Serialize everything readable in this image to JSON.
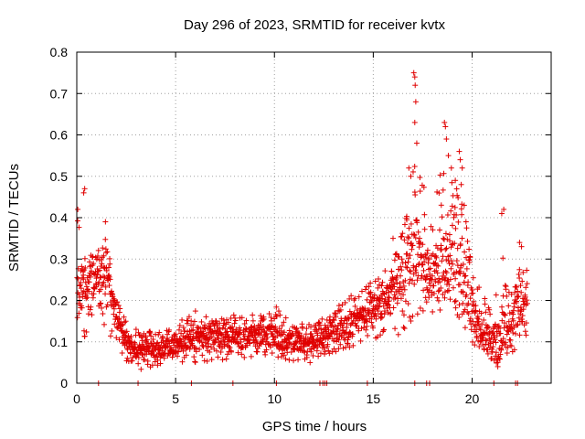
{
  "chart_data": {
    "type": "scatter",
    "title": "Day 296 of 2023, SRMTID for receiver kvtx",
    "xlabel": "GPS time / hours",
    "ylabel": "SRMTID / TECUs",
    "xlim": [
      0,
      24
    ],
    "ylim": [
      0,
      0.8
    ],
    "x_ticks": [
      0,
      5,
      10,
      15,
      20
    ],
    "y_ticks": [
      0,
      0.1,
      0.2,
      0.3,
      0.4,
      0.5,
      0.6,
      0.7,
      0.8
    ],
    "y_tick_labels": [
      "0",
      "0.1",
      "0.2",
      "0.3",
      "0.4",
      "0.5",
      "0.6",
      "0.7",
      "0.8"
    ],
    "grid": true,
    "marker": "+",
    "series_color": "#e00000",
    "envelope_note": "approximate per-hour trend of the plotted points",
    "trend": {
      "x": [
        0.0,
        0.5,
        1.0,
        1.5,
        2.0,
        2.5,
        3.0,
        4.0,
        5.0,
        6.0,
        7.0,
        8.0,
        9.0,
        10.0,
        11.0,
        12.0,
        12.7,
        13.5,
        14.5,
        15.5,
        16.2,
        16.8,
        17.2,
        17.8,
        18.5,
        19.0,
        19.5,
        20.0,
        20.5,
        21.0,
        21.5,
        22.0,
        22.5,
        22.8
      ],
      "y": [
        0.22,
        0.24,
        0.26,
        0.28,
        0.16,
        0.1,
        0.08,
        0.08,
        0.09,
        0.11,
        0.11,
        0.1,
        0.12,
        0.11,
        0.1,
        0.09,
        0.12,
        0.13,
        0.16,
        0.19,
        0.23,
        0.3,
        0.33,
        0.26,
        0.27,
        0.28,
        0.26,
        0.15,
        0.12,
        0.1,
        0.11,
        0.14,
        0.19,
        0.2
      ],
      "max": [
        0.47,
        0.33,
        0.33,
        0.38,
        0.22,
        0.17,
        0.15,
        0.14,
        0.16,
        0.2,
        0.17,
        0.19,
        0.18,
        0.22,
        0.16,
        0.16,
        0.18,
        0.22,
        0.26,
        0.29,
        0.35,
        0.52,
        0.75,
        0.4,
        0.63,
        0.55,
        0.56,
        0.3,
        0.26,
        0.2,
        0.42,
        0.24,
        0.34,
        0.3
      ],
      "min": [
        0.07,
        0.12,
        0.17,
        0.13,
        0.09,
        0.05,
        0.03,
        0.04,
        0.05,
        0.05,
        0.05,
        0.05,
        0.06,
        0.06,
        0.05,
        0.04,
        0.07,
        0.08,
        0.1,
        0.1,
        0.11,
        0.13,
        0.14,
        0.16,
        0.17,
        0.15,
        0.12,
        0.1,
        0.07,
        0.05,
        0.04,
        0.07,
        0.09,
        0.1
      ]
    },
    "spikes": [
      {
        "x": 0.4,
        "y": 0.47
      },
      {
        "x": 0.35,
        "y": 0.46
      },
      {
        "x": 0.05,
        "y": 0.42
      },
      {
        "x": 1.45,
        "y": 0.39
      },
      {
        "x": 16.0,
        "y": 0.35
      },
      {
        "x": 16.8,
        "y": 0.52
      },
      {
        "x": 16.9,
        "y": 0.5
      },
      {
        "x": 17.05,
        "y": 0.75
      },
      {
        "x": 17.1,
        "y": 0.74
      },
      {
        "x": 17.12,
        "y": 0.72
      },
      {
        "x": 17.15,
        "y": 0.68
      },
      {
        "x": 17.1,
        "y": 0.63
      },
      {
        "x": 17.2,
        "y": 0.58
      },
      {
        "x": 18.6,
        "y": 0.63
      },
      {
        "x": 18.65,
        "y": 0.62
      },
      {
        "x": 18.7,
        "y": 0.59
      },
      {
        "x": 18.8,
        "y": 0.55
      },
      {
        "x": 18.95,
        "y": 0.52
      },
      {
        "x": 19.15,
        "y": 0.49
      },
      {
        "x": 19.35,
        "y": 0.56
      },
      {
        "x": 19.4,
        "y": 0.54
      },
      {
        "x": 19.5,
        "y": 0.52
      },
      {
        "x": 19.45,
        "y": 0.48
      },
      {
        "x": 19.6,
        "y": 0.43
      },
      {
        "x": 21.6,
        "y": 0.42
      },
      {
        "x": 21.5,
        "y": 0.41
      },
      {
        "x": 21.3,
        "y": 0.04
      },
      {
        "x": 22.4,
        "y": 0.34
      },
      {
        "x": 22.5,
        "y": 0.33
      }
    ],
    "zero_points_x": [
      1.1,
      3.1,
      5.8,
      7.9,
      10.1,
      12.3,
      12.45,
      12.55,
      12.65,
      14.7,
      17.1,
      17.7,
      17.85,
      21.1,
      22.2,
      22.3
    ]
  }
}
